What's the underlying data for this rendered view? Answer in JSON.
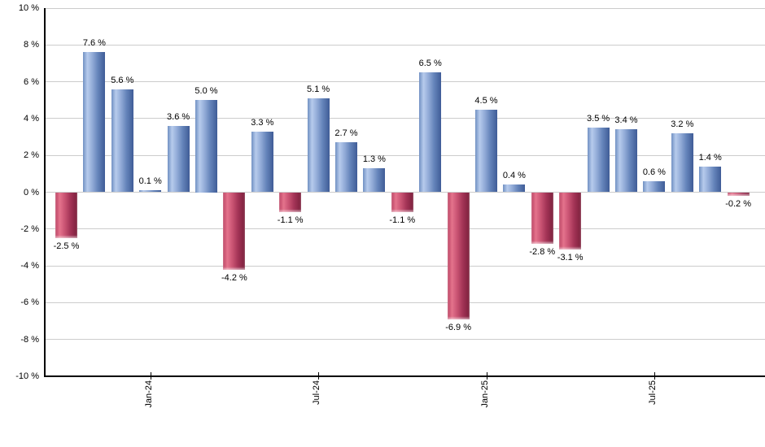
{
  "chart_data": {
    "type": "bar",
    "title": "",
    "xlabel": "",
    "ylabel": "",
    "ylim": [
      -10,
      10
    ],
    "y_tick_step": 2,
    "grid": true,
    "legend": "none",
    "values": [
      -2.5,
      7.6,
      5.6,
      0.1,
      3.6,
      5.0,
      -4.2,
      3.3,
      -1.1,
      5.1,
      2.7,
      1.3,
      -1.1,
      6.5,
      -6.9,
      4.5,
      0.4,
      -2.8,
      -3.1,
      3.5,
      3.4,
      0.6,
      3.2,
      1.4,
      -0.2
    ],
    "bar_labels": [
      "-2.5 %",
      "7.6 %",
      "5.6 %",
      "0.1 %",
      "3.6 %",
      "5.0 %",
      "-4.2 %",
      "3.3 %",
      "-1.1 %",
      "5.1 %",
      "2.7 %",
      "1.3 %",
      "-1.1 %",
      "6.5 %",
      "-6.9 %",
      "4.5 %",
      "0.4 %",
      "-2.8 %",
      "-3.1 %",
      "3.5 %",
      "3.4 %",
      "0.6 %",
      "3.2 %",
      "1.4 %",
      "-0.2 %"
    ],
    "y_tick_labels": [
      "10 %",
      "8 %",
      "6 %",
      "4 %",
      "2 %",
      "0 %",
      "-2 %",
      "-4 %",
      "-6 %",
      "-8 %",
      "-10 %"
    ],
    "x_ticks": [
      {
        "label": "Jan-24",
        "bar_index": 3
      },
      {
        "label": "Jul-24",
        "bar_index": 9
      },
      {
        "label": "Jan-25",
        "bar_index": 15
      },
      {
        "label": "Jul-25",
        "bar_index": 21
      }
    ],
    "colors": {
      "positive_bar_light": "#b7cbec",
      "positive_bar_dark": "#3f5c97",
      "negative_bar_light": "#e4738c",
      "negative_bar_dark": "#7b1f3b",
      "gridline": "#cccccc",
      "axis": "#000000",
      "background": "#ffffff",
      "label_text": "#000000"
    }
  }
}
